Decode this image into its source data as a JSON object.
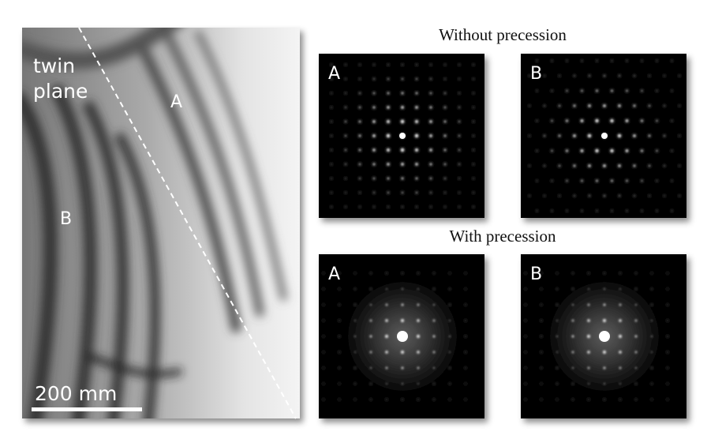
{
  "micrograph": {
    "twin_plane_label": [
      "twin",
      "plane"
    ],
    "grain_labels": [
      "A",
      "B"
    ],
    "scale_bar": "200 mm"
  },
  "diffraction": {
    "sections": [
      {
        "heading": "Without precession",
        "patterns": [
          {
            "label": "A"
          },
          {
            "label": "B"
          }
        ]
      },
      {
        "heading": "With precession",
        "patterns": [
          {
            "label": "A"
          },
          {
            "label": "B"
          }
        ]
      }
    ]
  }
}
